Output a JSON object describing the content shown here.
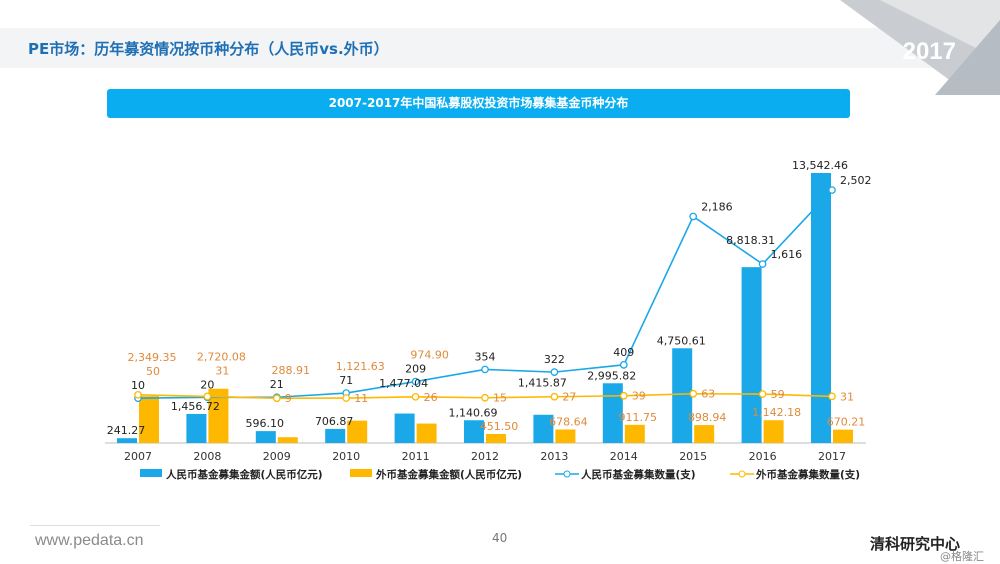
{
  "header": {
    "title": "PE市场：历年募资情况按币种分布（人民币vs.外币）",
    "year_badge": "2017"
  },
  "footer": {
    "url": "www.pedata.cn",
    "page": "40",
    "brand": "清科研究中心",
    "watermark": "@格隆汇"
  },
  "colors": {
    "rmb": "#1aa8e8",
    "foreign": "#ffb800",
    "foreign_label": "#e08a3a",
    "banner": "#0aaef0"
  },
  "chart_data": {
    "type": "bar+line",
    "title": "2007-2017年中国私募股权投资市场募集基金币种分布",
    "categories": [
      "2007",
      "2008",
      "2009",
      "2010",
      "2011",
      "2012",
      "2013",
      "2014",
      "2015",
      "2016",
      "2017"
    ],
    "series": [
      {
        "name": "人民币基金募集金额(人民币亿元)",
        "type": "bar",
        "labels": [
          "241.27",
          "1,456.72",
          "596.10",
          "706.87",
          "1,477.04",
          "1,140.69",
          "1,415.87",
          "2,995.82",
          "4,750.61",
          "8,818.31",
          "13,542.46"
        ],
        "values": [
          241.27,
          1456.72,
          596.1,
          706.87,
          1477.04,
          1140.69,
          1415.87,
          2995.82,
          4750.61,
          8818.31,
          13542.46
        ]
      },
      {
        "name": "外币基金募集金额(人民币亿元)",
        "type": "bar",
        "labels": [
          "2,349.35",
          "2,720.08",
          "288.91",
          "1,121.63",
          "974.90",
          "451.50",
          "678.64",
          "911.75",
          "898.94",
          "1,142.18",
          "670.21"
        ],
        "values": [
          2349.35,
          2720.08,
          288.91,
          1121.63,
          974.9,
          451.5,
          678.64,
          911.75,
          898.94,
          1142.18,
          670.21
        ]
      },
      {
        "name": "人民币基金募集数量(支)",
        "type": "line",
        "labels": [
          "10",
          "20",
          "21",
          "71",
          "209",
          "354",
          "322",
          "409",
          "2,186",
          "1,616",
          "2,502"
        ],
        "values": [
          10,
          20,
          21,
          71,
          209,
          354,
          322,
          409,
          2186,
          1616,
          2502
        ]
      },
      {
        "name": "外币基金募集数量(支)",
        "type": "line",
        "labels": [
          "50",
          "31",
          "9",
          "11",
          "26",
          "15",
          "27",
          "39",
          "63",
          "59",
          "31"
        ],
        "values": [
          50,
          31,
          9,
          11,
          26,
          15,
          27,
          39,
          63,
          59,
          31
        ]
      }
    ],
    "legend": "bottom"
  }
}
